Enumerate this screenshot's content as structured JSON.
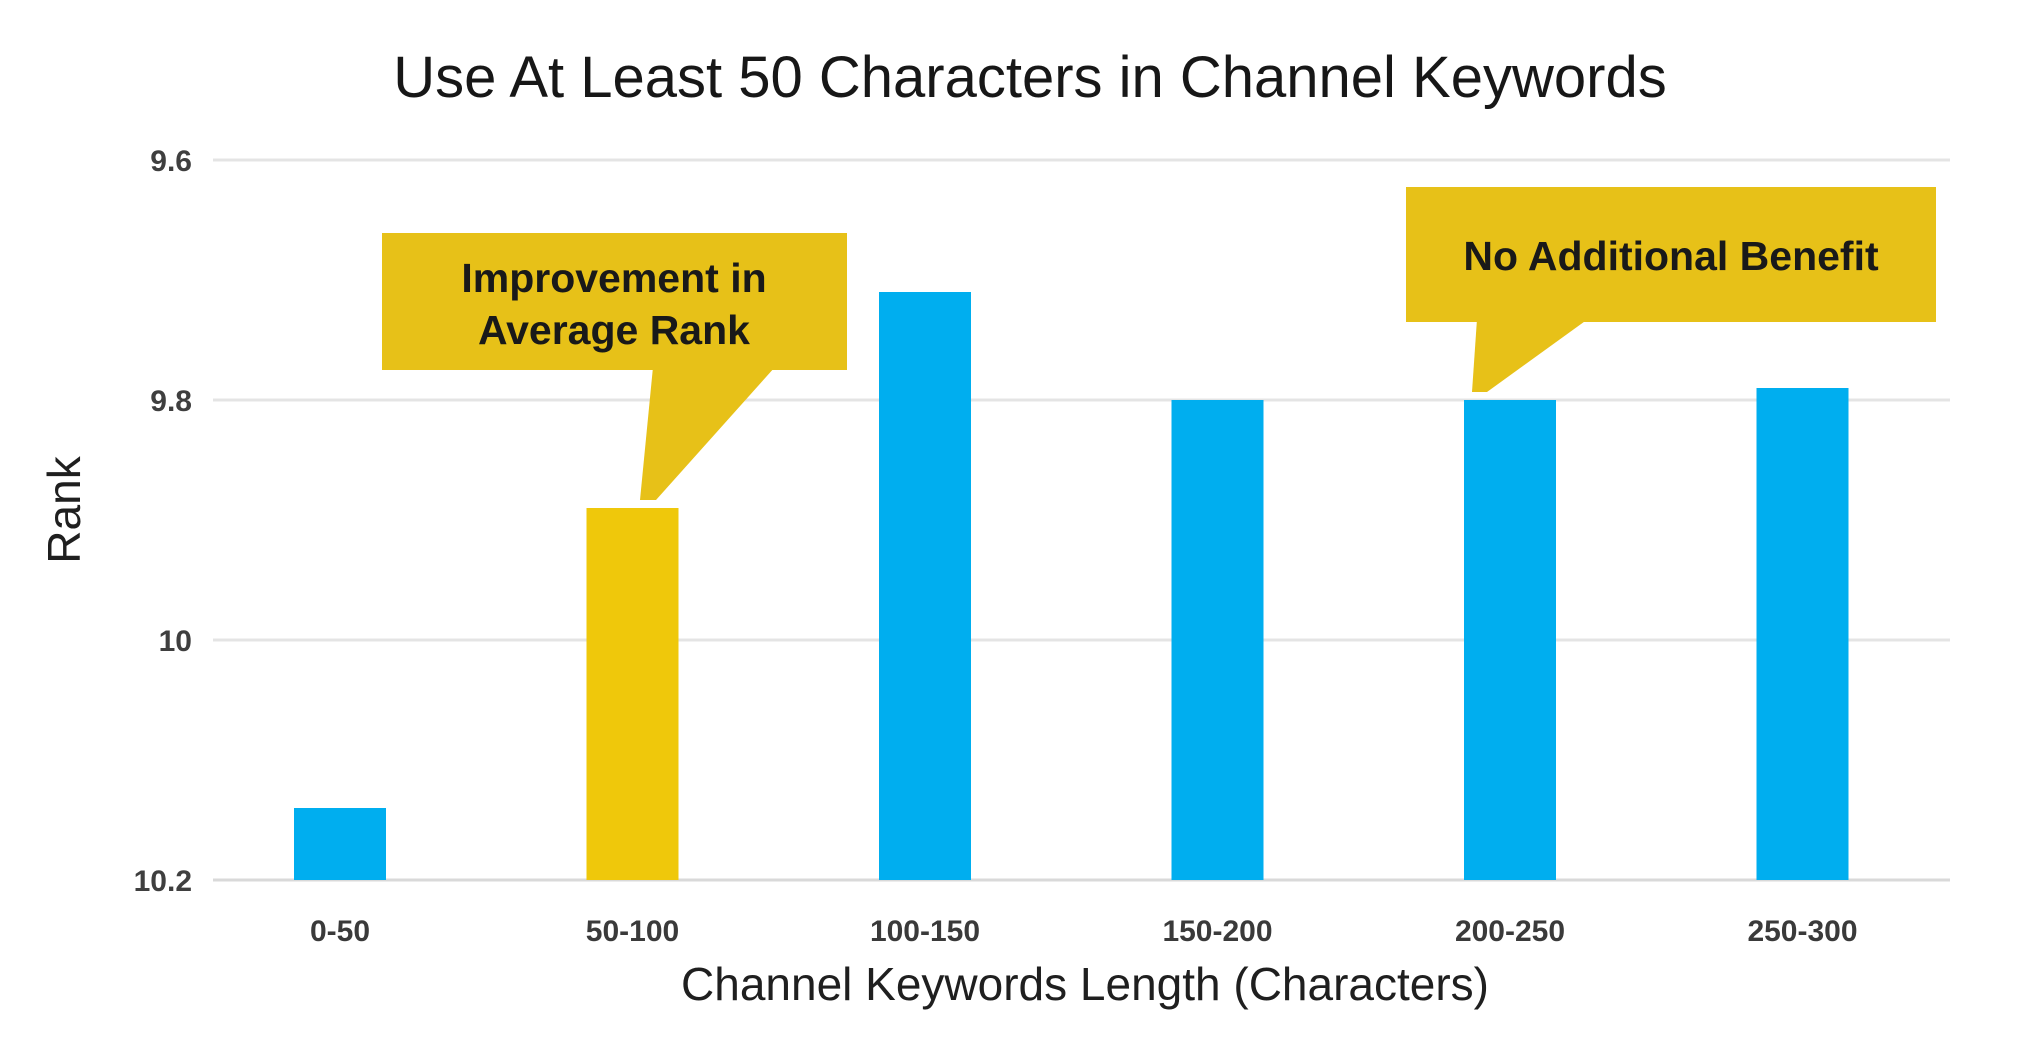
{
  "chart": {
    "colors": {
      "bar_blue": "#00AEEF",
      "bar_gold": "#EFC80B",
      "callout_bg": "#E7C118",
      "gridline": "#E4E4E4",
      "baseline": "#D9D9D9",
      "tick_text": "#3F3F3F",
      "text_dark": "#1A1A1A"
    }
  },
  "chart_data": {
    "type": "bar",
    "title": "Use At Least 50 Characters in Channel Keywords",
    "xlabel": "Channel Keywords Length (Characters)",
    "ylabel": "Rank",
    "categories": [
      "0-50",
      "50-100",
      "100-150",
      "150-200",
      "200-250",
      "250-300"
    ],
    "values": [
      10.14,
      9.89,
      9.71,
      9.8,
      9.8,
      9.79
    ],
    "highlight_category": "50-100",
    "y_axis": {
      "ticks": [
        9.6,
        9.8,
        10,
        10.2
      ],
      "min": 9.6,
      "max": 10.2,
      "inverted": true,
      "note": "Axis increases downward; lower rank value (taller bar) is better"
    },
    "grid": true,
    "legend": false,
    "annotations": [
      {
        "line1": "Improvement in",
        "line2": "Average Rank",
        "text": "Improvement in Average Rank",
        "target_category": "50-100"
      },
      {
        "line1": "No Additional Benefit",
        "line2": "",
        "text": "No Additional Benefit",
        "target_category": "200-250"
      }
    ]
  }
}
